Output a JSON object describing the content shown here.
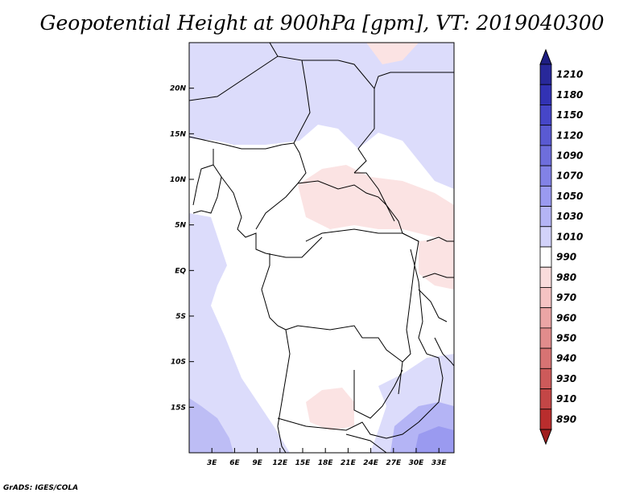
{
  "title": "Geopotential Height at 900hPa [gpm], VT: 2019040300",
  "footer": "GrADS: IGES/COLA",
  "map": {
    "lon_range": [
      0,
      35
    ],
    "lat_range": [
      -20,
      25
    ],
    "lat_labels": [
      "20N",
      "15N",
      "10N",
      "5N",
      "EQ",
      "5S",
      "10S",
      "15S"
    ],
    "lat_values": [
      20,
      15,
      10,
      5,
      0,
      -5,
      -10,
      -15
    ],
    "lon_labels": [
      "3E",
      "6E",
      "9E",
      "12E",
      "15E",
      "18E",
      "21E",
      "24E",
      "27E",
      "30E",
      "33E"
    ],
    "lon_values": [
      3,
      6,
      9,
      12,
      15,
      18,
      21,
      24,
      27,
      30,
      33
    ]
  },
  "colorbar": {
    "levels": [
      "1210",
      "1180",
      "1150",
      "1120",
      "1090",
      "1070",
      "1050",
      "1030",
      "1010",
      "990",
      "980",
      "970",
      "960",
      "950",
      "940",
      "930",
      "910",
      "890"
    ],
    "colors": [
      "#28289a",
      "#3232b4",
      "#4646c8",
      "#5a5ad2",
      "#6e6edc",
      "#8282e6",
      "#9a9af0",
      "#b4b4f5",
      "#d2d2fa",
      "#ffffff",
      "#fadcdc",
      "#f5c3c3",
      "#eba5a5",
      "#e18c8c",
      "#d77373",
      "#cd5a5a",
      "#c34646",
      "#b92d2d"
    ],
    "top_arrow_color": "#1e1e82",
    "bottom_arrow_color": "#a01e1e"
  }
}
